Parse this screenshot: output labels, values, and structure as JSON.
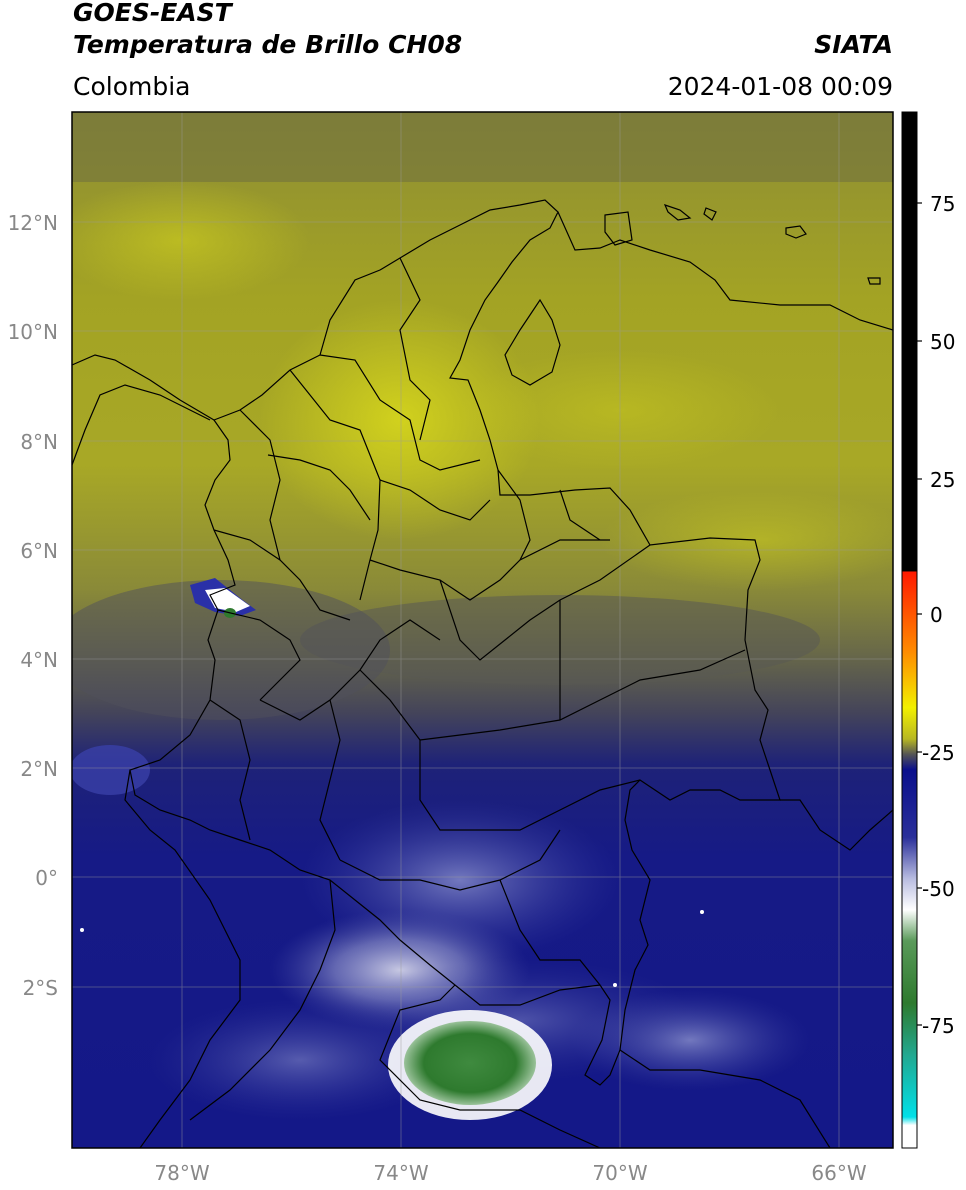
{
  "header": {
    "satellite": "GOES-EAST",
    "product": "Temperatura de Brillo CH08",
    "organization": "SIATA",
    "region": "Colombia",
    "timestamp": "2024-01-08 00:09"
  },
  "map": {
    "lat_labels": [
      "12°N",
      "10°N",
      "8°N",
      "6°N",
      "4°N",
      "2°N",
      "0°",
      "2°S"
    ],
    "lon_labels": [
      "78°W",
      "74°W",
      "70°W",
      "66°W"
    ]
  },
  "colorbar": {
    "ticks": [
      "75",
      "50",
      "25",
      "0",
      "-25",
      "-50",
      "-75"
    ],
    "colors": {
      "high": "#000000",
      "warm_red": "#ff1a00",
      "orange": "#ff8a00",
      "yellow": "#f2f000",
      "olive": "#b8b822",
      "gray": "#555555",
      "navy": "#0a0f8c",
      "lavender": "#b8bce0",
      "white": "#ffffff",
      "green": "#2e7a2e",
      "teal": "#22a890",
      "cyan": "#00e0e8"
    }
  }
}
